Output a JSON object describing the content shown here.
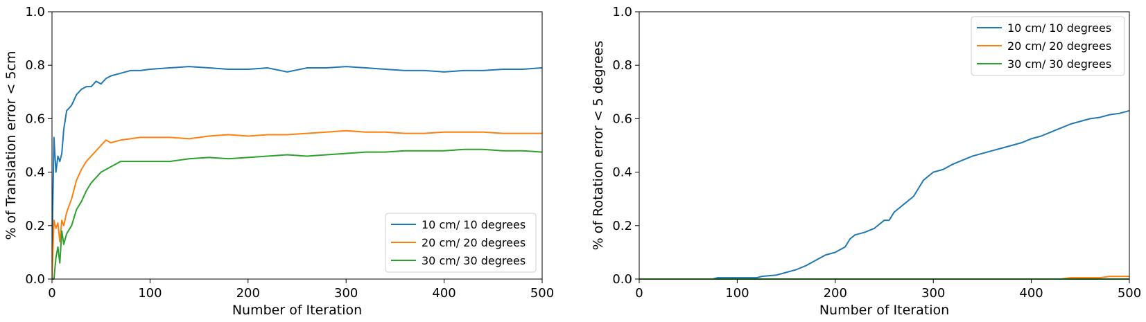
{
  "chart_data": [
    {
      "type": "line",
      "title": "",
      "xlabel": "Number of Iteration",
      "ylabel": "% of Translation error < 5cm",
      "xlim": [
        0,
        500
      ],
      "ylim": [
        0,
        1.0
      ],
      "xticks": [
        "0",
        "100",
        "200",
        "300",
        "400",
        "500"
      ],
      "yticks": [
        "0.0",
        "0.2",
        "0.4",
        "0.6",
        "0.8",
        "1.0"
      ],
      "grid": false,
      "legend_position": "lower-right",
      "x": [
        0,
        2,
        4,
        6,
        8,
        10,
        12,
        15,
        20,
        25,
        30,
        35,
        40,
        45,
        50,
        55,
        60,
        70,
        80,
        90,
        100,
        120,
        140,
        160,
        180,
        200,
        220,
        240,
        260,
        280,
        300,
        320,
        340,
        360,
        380,
        400,
        420,
        440,
        460,
        480,
        500
      ],
      "series": [
        {
          "name": "10 cm/ 10 degrees",
          "color": "#1f77b4",
          "values": [
            0.1,
            0.53,
            0.4,
            0.46,
            0.44,
            0.47,
            0.56,
            0.63,
            0.65,
            0.69,
            0.71,
            0.72,
            0.72,
            0.74,
            0.73,
            0.75,
            0.76,
            0.77,
            0.78,
            0.78,
            0.785,
            0.79,
            0.795,
            0.79,
            0.785,
            0.785,
            0.79,
            0.775,
            0.79,
            0.79,
            0.795,
            0.79,
            0.785,
            0.78,
            0.78,
            0.775,
            0.78,
            0.78,
            0.785,
            0.785,
            0.79
          ]
        },
        {
          "name": "20 cm/ 20 degrees",
          "color": "#ff7f0e",
          "values": [
            0.0,
            0.22,
            0.19,
            0.21,
            0.14,
            0.22,
            0.2,
            0.25,
            0.3,
            0.37,
            0.41,
            0.44,
            0.46,
            0.48,
            0.5,
            0.52,
            0.51,
            0.52,
            0.525,
            0.53,
            0.53,
            0.53,
            0.525,
            0.535,
            0.54,
            0.535,
            0.54,
            0.54,
            0.545,
            0.55,
            0.555,
            0.55,
            0.55,
            0.545,
            0.545,
            0.55,
            0.55,
            0.55,
            0.545,
            0.545,
            0.545
          ]
        },
        {
          "name": "30 cm/ 30 degrees",
          "color": "#2ca02c",
          "values": [
            0.0,
            0.0,
            0.08,
            0.12,
            0.06,
            0.18,
            0.13,
            0.17,
            0.2,
            0.26,
            0.29,
            0.33,
            0.36,
            0.38,
            0.4,
            0.41,
            0.42,
            0.44,
            0.44,
            0.44,
            0.44,
            0.44,
            0.45,
            0.455,
            0.45,
            0.455,
            0.46,
            0.465,
            0.46,
            0.465,
            0.47,
            0.475,
            0.475,
            0.48,
            0.48,
            0.48,
            0.485,
            0.485,
            0.48,
            0.48,
            0.475
          ]
        }
      ]
    },
    {
      "type": "line",
      "title": "",
      "xlabel": "Number of Iteration",
      "ylabel": "% of Rotation error < 5 degrees",
      "xlim": [
        0,
        500
      ],
      "ylim": [
        0,
        1.0
      ],
      "xticks": [
        "0",
        "100",
        "200",
        "300",
        "400",
        "500"
      ],
      "yticks": [
        "0.0",
        "0.2",
        "0.4",
        "0.6",
        "0.8",
        "1.0"
      ],
      "grid": false,
      "legend_position": "upper-right",
      "x": [
        0,
        75,
        80,
        120,
        125,
        140,
        150,
        160,
        170,
        180,
        190,
        200,
        210,
        215,
        220,
        230,
        240,
        250,
        255,
        260,
        270,
        280,
        285,
        290,
        300,
        310,
        320,
        330,
        340,
        350,
        360,
        370,
        380,
        390,
        400,
        410,
        420,
        430,
        440,
        450,
        460,
        470,
        480,
        490,
        500
      ],
      "series": [
        {
          "name": "10 cm/ 10 degrees",
          "color": "#1f77b4",
          "values": [
            0.0,
            0.0,
            0.005,
            0.005,
            0.01,
            0.015,
            0.025,
            0.035,
            0.05,
            0.07,
            0.09,
            0.1,
            0.12,
            0.15,
            0.165,
            0.175,
            0.19,
            0.22,
            0.22,
            0.25,
            0.28,
            0.31,
            0.34,
            0.37,
            0.4,
            0.41,
            0.43,
            0.445,
            0.46,
            0.47,
            0.48,
            0.49,
            0.5,
            0.51,
            0.525,
            0.535,
            0.55,
            0.565,
            0.58,
            0.59,
            0.6,
            0.605,
            0.615,
            0.62,
            0.63
          ]
        },
        {
          "name": "20 cm/ 20 degrees",
          "color": "#ff7f0e",
          "values": [
            0.0,
            0.0,
            0.0,
            0.0,
            0.0,
            0.0,
            0.0,
            0.0,
            0.0,
            0.0,
            0.0,
            0.0,
            0.0,
            0.0,
            0.0,
            0.0,
            0.0,
            0.0,
            0.0,
            0.0,
            0.0,
            0.0,
            0.0,
            0.0,
            0.0,
            0.0,
            0.0,
            0.0,
            0.0,
            0.0,
            0.0,
            0.0,
            0.0,
            0.0,
            0.0,
            0.0,
            0.0,
            0.0,
            0.005,
            0.005,
            0.005,
            0.005,
            0.01,
            0.01,
            0.01
          ]
        },
        {
          "name": "30 cm/ 30 degrees",
          "color": "#2ca02c",
          "values": [
            0.0,
            0.0,
            0.0,
            0.0,
            0.0,
            0.0,
            0.0,
            0.0,
            0.0,
            0.0,
            0.0,
            0.0,
            0.0,
            0.0,
            0.0,
            0.0,
            0.0,
            0.0,
            0.0,
            0.0,
            0.0,
            0.0,
            0.0,
            0.0,
            0.0,
            0.0,
            0.0,
            0.0,
            0.0,
            0.0,
            0.0,
            0.0,
            0.0,
            0.0,
            0.0,
            0.0,
            0.0,
            0.0,
            0.0,
            0.0,
            0.0,
            0.0,
            0.0,
            0.0,
            0.0
          ]
        }
      ]
    }
  ]
}
